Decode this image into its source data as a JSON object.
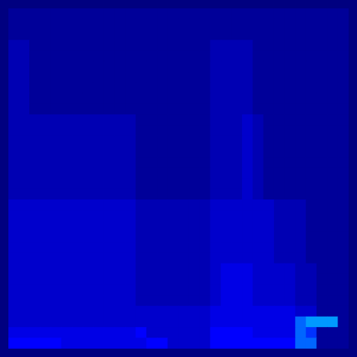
{
  "chart_data": {
    "type": "heatmap",
    "tick_labels": false,
    "grid": false,
    "zlim": [
      0,
      10
    ],
    "cells": [
      [
        1,
        1,
        1,
        1,
        1,
        1,
        1,
        1,
        1,
        1,
        1,
        1,
        1,
        1,
        1,
        1,
        1,
        1,
        1,
        1,
        1,
        1,
        1,
        1,
        1,
        1,
        1,
        1,
        1,
        1,
        1,
        1
      ],
      [
        1,
        1,
        1,
        1,
        1,
        1,
        1,
        1,
        1,
        1,
        1,
        1,
        1,
        1,
        1,
        1,
        1,
        1,
        1,
        1,
        1,
        1,
        1,
        1,
        1,
        1,
        1,
        1,
        1,
        1,
        1,
        1
      ],
      [
        1,
        1,
        1,
        1,
        1,
        1,
        1,
        1,
        1,
        1,
        1,
        1,
        1,
        1,
        1,
        1,
        1,
        1,
        1,
        1,
        1,
        1,
        1,
        1,
        1,
        1,
        1,
        1,
        1,
        1,
        1,
        1
      ],
      [
        2,
        2,
        1,
        1,
        1,
        1,
        1,
        1,
        1,
        1,
        1,
        1,
        1,
        1,
        1,
        1,
        1,
        1,
        1,
        2,
        2,
        2,
        2,
        1,
        1,
        1,
        1,
        1,
        1,
        1,
        1,
        1
      ],
      [
        2,
        2,
        1,
        1,
        1,
        1,
        1,
        1,
        1,
        1,
        1,
        1,
        1,
        1,
        1,
        1,
        1,
        1,
        1,
        2,
        2,
        2,
        2,
        1,
        1,
        1,
        1,
        1,
        1,
        1,
        1,
        1
      ],
      [
        2,
        2,
        1,
        1,
        1,
        1,
        1,
        1,
        1,
        1,
        1,
        1,
        1,
        1,
        1,
        1,
        1,
        1,
        1,
        2,
        2,
        2,
        2,
        1,
        1,
        1,
        1,
        1,
        1,
        1,
        1,
        1
      ],
      [
        2,
        2,
        1,
        1,
        1,
        1,
        1,
        1,
        1,
        1,
        1,
        1,
        1,
        1,
        1,
        1,
        1,
        1,
        1,
        2,
        2,
        2,
        2,
        1,
        1,
        1,
        1,
        1,
        1,
        1,
        1,
        1
      ],
      [
        2,
        2,
        1,
        1,
        1,
        1,
        1,
        1,
        1,
        1,
        1,
        1,
        1,
        1,
        1,
        1,
        1,
        1,
        1,
        2,
        2,
        2,
        2,
        1,
        1,
        1,
        1,
        1,
        1,
        1,
        1,
        1
      ],
      [
        2,
        2,
        1,
        1,
        1,
        1,
        1,
        1,
        1,
        1,
        1,
        1,
        1,
        1,
        1,
        1,
        1,
        1,
        1,
        2,
        2,
        2,
        2,
        1,
        1,
        1,
        1,
        1,
        1,
        1,
        1,
        1
      ],
      [
        2,
        2,
        1,
        1,
        1,
        1,
        1,
        1,
        1,
        1,
        1,
        1,
        1,
        1,
        1,
        1,
        1,
        1,
        1,
        2,
        2,
        2,
        2,
        1,
        1,
        1,
        1,
        1,
        1,
        1,
        1,
        1
      ],
      [
        2,
        2,
        2,
        2,
        2,
        2,
        2,
        2,
        2,
        2,
        2,
        2,
        1,
        1,
        1,
        1,
        1,
        1,
        1,
        2,
        2,
        2,
        3,
        2,
        1,
        1,
        1,
        1,
        1,
        1,
        1,
        1
      ],
      [
        2,
        2,
        2,
        2,
        2,
        2,
        2,
        2,
        2,
        2,
        2,
        2,
        1,
        1,
        1,
        1,
        1,
        1,
        1,
        2,
        2,
        2,
        3,
        2,
        1,
        1,
        1,
        1,
        1,
        1,
        1,
        1
      ],
      [
        2,
        2,
        2,
        2,
        2,
        2,
        2,
        2,
        2,
        2,
        2,
        2,
        1,
        1,
        1,
        1,
        1,
        1,
        1,
        2,
        2,
        2,
        3,
        2,
        1,
        1,
        1,
        1,
        1,
        1,
        1,
        1
      ],
      [
        2,
        2,
        2,
        2,
        2,
        2,
        2,
        2,
        2,
        2,
        2,
        2,
        1,
        1,
        1,
        1,
        1,
        1,
        1,
        2,
        2,
        2,
        3,
        2,
        1,
        1,
        1,
        1,
        1,
        1,
        1,
        1
      ],
      [
        2,
        2,
        2,
        2,
        2,
        2,
        2,
        2,
        2,
        2,
        2,
        2,
        1,
        1,
        1,
        1,
        1,
        1,
        1,
        2,
        2,
        2,
        3,
        2,
        1,
        1,
        1,
        1,
        1,
        1,
        1,
        1
      ],
      [
        2,
        2,
        2,
        2,
        2,
        2,
        2,
        2,
        2,
        2,
        2,
        2,
        1,
        1,
        1,
        1,
        1,
        1,
        1,
        2,
        2,
        2,
        3,
        2,
        1,
        1,
        1,
        1,
        1,
        1,
        1,
        1
      ],
      [
        2,
        2,
        2,
        2,
        2,
        2,
        2,
        2,
        2,
        2,
        2,
        2,
        1,
        1,
        1,
        1,
        1,
        1,
        1,
        2,
        2,
        2,
        3,
        2,
        1,
        1,
        1,
        1,
        1,
        1,
        1,
        1
      ],
      [
        2,
        2,
        2,
        2,
        2,
        2,
        2,
        2,
        2,
        2,
        2,
        2,
        1,
        1,
        1,
        1,
        1,
        1,
        1,
        2,
        2,
        2,
        3,
        2,
        1,
        1,
        1,
        1,
        1,
        1,
        1,
        1
      ],
      [
        3,
        3,
        3,
        3,
        3,
        3,
        3,
        3,
        3,
        3,
        3,
        3,
        2,
        2,
        2,
        2,
        2,
        2,
        2,
        3,
        3,
        3,
        3,
        3,
        3,
        2,
        2,
        2,
        1,
        1,
        1,
        1
      ],
      [
        3,
        3,
        3,
        3,
        3,
        3,
        3,
        3,
        3,
        3,
        3,
        3,
        2,
        2,
        2,
        2,
        2,
        2,
        2,
        3,
        3,
        3,
        3,
        3,
        3,
        2,
        2,
        2,
        1,
        1,
        1,
        1
      ],
      [
        3,
        3,
        3,
        3,
        3,
        3,
        3,
        3,
        3,
        3,
        3,
        3,
        2,
        2,
        2,
        2,
        2,
        2,
        2,
        3,
        3,
        3,
        3,
        3,
        3,
        2,
        2,
        2,
        1,
        1,
        1,
        1
      ],
      [
        3,
        3,
        3,
        3,
        3,
        3,
        3,
        3,
        3,
        3,
        3,
        3,
        2,
        2,
        2,
        2,
        2,
        2,
        2,
        3,
        3,
        3,
        3,
        3,
        3,
        2,
        2,
        2,
        1,
        1,
        1,
        1
      ],
      [
        3,
        3,
        3,
        3,
        3,
        3,
        3,
        3,
        3,
        3,
        3,
        3,
        2,
        2,
        2,
        2,
        2,
        2,
        2,
        3,
        3,
        3,
        3,
        3,
        3,
        2,
        2,
        2,
        1,
        1,
        1,
        1
      ],
      [
        3,
        3,
        3,
        3,
        3,
        3,
        3,
        3,
        3,
        3,
        3,
        3,
        2,
        2,
        2,
        2,
        2,
        2,
        2,
        3,
        3,
        3,
        3,
        3,
        3,
        2,
        2,
        2,
        1,
        1,
        1,
        1
      ],
      [
        3,
        3,
        3,
        3,
        3,
        3,
        3,
        3,
        3,
        3,
        3,
        3,
        2,
        2,
        2,
        2,
        2,
        2,
        2,
        3,
        4,
        4,
        4,
        3,
        3,
        3,
        3,
        2,
        2,
        1,
        1,
        1
      ],
      [
        3,
        3,
        3,
        3,
        3,
        3,
        3,
        3,
        3,
        3,
        3,
        3,
        2,
        2,
        2,
        2,
        2,
        2,
        2,
        3,
        4,
        4,
        4,
        3,
        3,
        3,
        3,
        2,
        2,
        1,
        1,
        1
      ],
      [
        3,
        3,
        3,
        3,
        3,
        3,
        3,
        3,
        3,
        3,
        3,
        3,
        2,
        2,
        2,
        2,
        2,
        2,
        2,
        3,
        4,
        4,
        4,
        3,
        3,
        3,
        3,
        2,
        2,
        1,
        1,
        1
      ],
      [
        3,
        3,
        3,
        3,
        3,
        3,
        3,
        3,
        3,
        3,
        3,
        3,
        2,
        2,
        2,
        2,
        2,
        2,
        2,
        3,
        4,
        4,
        4,
        3,
        3,
        3,
        3,
        2,
        2,
        1,
        1,
        1
      ],
      [
        3,
        3,
        3,
        3,
        3,
        3,
        3,
        3,
        3,
        3,
        3,
        3,
        3,
        3,
        3,
        3,
        3,
        3,
        3,
        4,
        4,
        4,
        4,
        4,
        4,
        4,
        4,
        3,
        3,
        1,
        1,
        1
      ],
      [
        3,
        3,
        3,
        3,
        3,
        3,
        3,
        3,
        3,
        3,
        3,
        3,
        3,
        3,
        3,
        3,
        3,
        3,
        3,
        4,
        4,
        4,
        4,
        4,
        4,
        4,
        4,
        7,
        8,
        8,
        8,
        1
      ],
      [
        4,
        4,
        4,
        4,
        4,
        4,
        4,
        4,
        4,
        4,
        4,
        4,
        5,
        3,
        3,
        3,
        3,
        3,
        3,
        5,
        5,
        5,
        5,
        4,
        4,
        4,
        4,
        7,
        6,
        1,
        1,
        1
      ],
      [
        5,
        5,
        5,
        5,
        5,
        4,
        4,
        4,
        4,
        4,
        4,
        4,
        4,
        5,
        5,
        3,
        3,
        3,
        3,
        5,
        5,
        5,
        5,
        5,
        5,
        5,
        5,
        7,
        7,
        1,
        1,
        1
      ]
    ]
  }
}
